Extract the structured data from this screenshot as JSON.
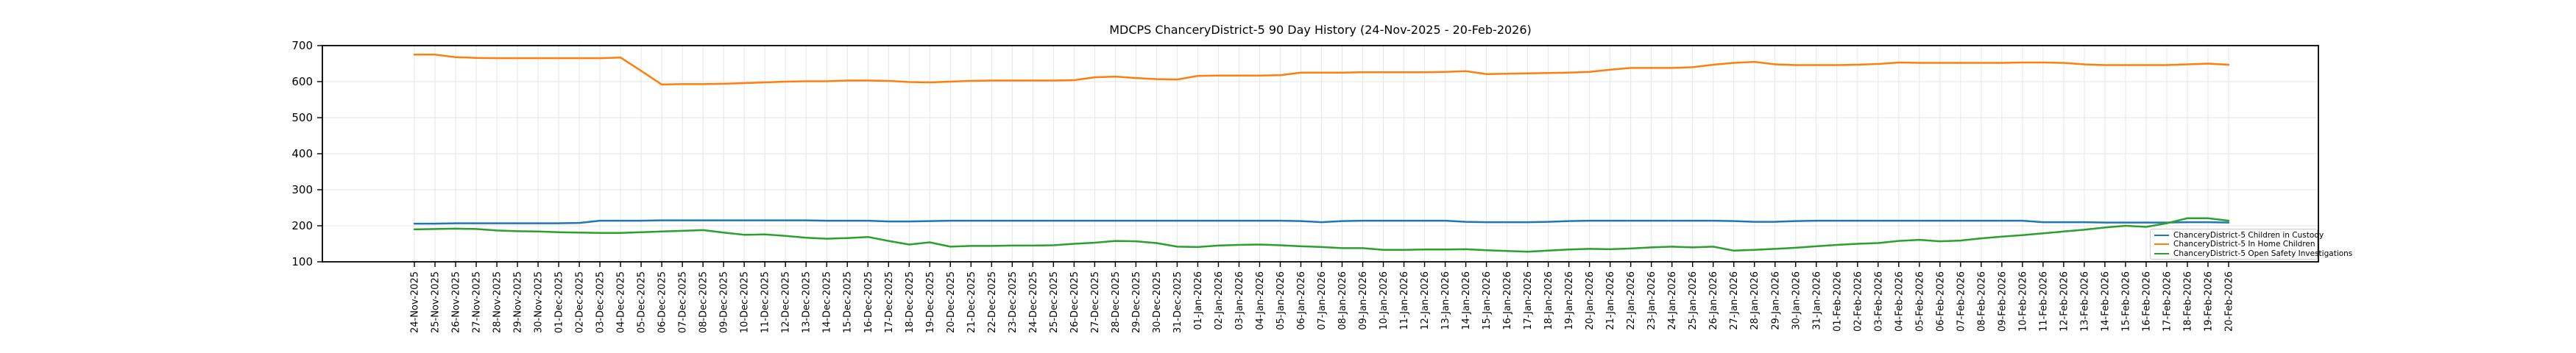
{
  "figure": {
    "background": "#ffffff",
    "plot_border_color": "#000000",
    "gridline_color": "#e6e6e6"
  },
  "chart_data": {
    "type": "line",
    "title": "MDCPS ChanceryDistrict-5 90 Day History (24-Nov-2025 - 20-Feb-2026)",
    "xlabel": "",
    "ylabel": "",
    "ylim": [
      100,
      700
    ],
    "yticks": [
      100,
      200,
      300,
      400,
      500,
      600,
      700
    ],
    "grid": true,
    "legend_position": "lower right",
    "x_tick_labels": [
      "24-Nov-2025",
      "25-Nov-2025",
      "26-Nov-2025",
      "27-Nov-2025",
      "28-Nov-2025",
      "29-Nov-2025",
      "30-Nov-2025",
      "01-Dec-2025",
      "02-Dec-2025",
      "03-Dec-2025",
      "04-Dec-2025",
      "05-Dec-2025",
      "06-Dec-2025",
      "07-Dec-2025",
      "08-Dec-2025",
      "09-Dec-2025",
      "10-Dec-2025",
      "11-Dec-2025",
      "12-Dec-2025",
      "13-Dec-2025",
      "14-Dec-2025",
      "15-Dec-2025",
      "16-Dec-2025",
      "17-Dec-2025",
      "18-Dec-2025",
      "19-Dec-2025",
      "20-Dec-2025",
      "21-Dec-2025",
      "22-Dec-2025",
      "23-Dec-2025",
      "24-Dec-2025",
      "25-Dec-2025",
      "26-Dec-2025",
      "27-Dec-2025",
      "28-Dec-2025",
      "29-Dec-2025",
      "30-Dec-2025",
      "31-Dec-2025",
      "01-Jan-2026",
      "02-Jan-2026",
      "03-Jan-2026",
      "04-Jan-2026",
      "05-Jan-2026",
      "06-Jan-2026",
      "07-Jan-2026",
      "08-Jan-2026",
      "09-Jan-2026",
      "10-Jan-2026",
      "11-Jan-2026",
      "12-Jan-2026",
      "13-Jan-2026",
      "14-Jan-2026",
      "15-Jan-2026",
      "16-Jan-2026",
      "17-Jan-2026",
      "18-Jan-2026",
      "19-Jan-2026",
      "20-Jan-2026",
      "21-Jan-2026",
      "22-Jan-2026",
      "23-Jan-2026",
      "24-Jan-2026",
      "25-Jan-2026",
      "26-Jan-2026",
      "27-Jan-2026",
      "28-Jan-2026",
      "29-Jan-2026",
      "30-Jan-2026",
      "31-Jan-2026",
      "01-Feb-2026",
      "02-Feb-2026",
      "03-Feb-2026",
      "04-Feb-2026",
      "05-Feb-2026",
      "06-Feb-2026",
      "07-Feb-2026",
      "08-Feb-2026",
      "09-Feb-2026",
      "10-Feb-2026",
      "11-Feb-2026",
      "12-Feb-2026",
      "13-Feb-2026",
      "14-Feb-2026",
      "15-Feb-2026",
      "16-Feb-2026",
      "17-Feb-2026",
      "18-Feb-2026",
      "19-Feb-2026",
      "20-Feb-2026"
    ],
    "series": [
      {
        "name": "ChanceryDistrict-5 Children in Custody",
        "color": "#1f77b4",
        "values": [
          206,
          206,
          207,
          207,
          207,
          207,
          207,
          207,
          208,
          214,
          214,
          214,
          215,
          215,
          215,
          215,
          215,
          215,
          215,
          215,
          214,
          214,
          214,
          212,
          212,
          213,
          214,
          214,
          214,
          214,
          214,
          214,
          214,
          214,
          214,
          214,
          214,
          214,
          214,
          214,
          214,
          214,
          214,
          213,
          210,
          213,
          214,
          214,
          214,
          214,
          214,
          211,
          210,
          210,
          210,
          211,
          213,
          214,
          214,
          214,
          214,
          214,
          214,
          214,
          213,
          211,
          211,
          213,
          214,
          214,
          214,
          214,
          214,
          214,
          214,
          214,
          214,
          214,
          214,
          210,
          210,
          210,
          209,
          209,
          209,
          209,
          210,
          210,
          209
        ]
      },
      {
        "name": "ChanceryDistrict-5 In Home Children",
        "color": "#ff7f0e",
        "values": [
          675,
          675,
          668,
          666,
          665,
          665,
          665,
          665,
          665,
          665,
          667,
          630,
          592,
          593,
          593,
          594,
          596,
          598,
          600,
          601,
          601,
          603,
          603,
          602,
          599,
          598,
          600,
          602,
          603,
          603,
          603,
          603,
          604,
          612,
          614,
          610,
          607,
          606,
          616,
          617,
          617,
          617,
          618,
          625,
          625,
          625,
          626,
          626,
          626,
          626,
          627,
          629,
          621,
          622,
          623,
          624,
          625,
          627,
          633,
          638,
          638,
          638,
          640,
          647,
          652,
          655,
          648,
          646,
          646,
          646,
          647,
          649,
          653,
          652,
          652,
          652,
          652,
          652,
          653,
          653,
          652,
          648,
          646,
          646,
          646,
          646,
          648,
          650,
          647
        ]
      },
      {
        "name": "ChanceryDistrict-5 Open Safety Investigations",
        "color": "#2ca02c",
        "values": [
          190,
          191,
          192,
          191,
          187,
          185,
          184,
          182,
          181,
          180,
          180,
          182,
          184,
          186,
          188,
          181,
          175,
          176,
          172,
          167,
          164,
          166,
          169,
          158,
          148,
          154,
          142,
          144,
          144,
          145,
          145,
          146,
          150,
          153,
          158,
          157,
          152,
          142,
          141,
          145,
          147,
          148,
          146,
          143,
          141,
          138,
          138,
          133,
          133,
          134,
          134,
          135,
          132,
          130,
          128,
          131,
          134,
          136,
          135,
          137,
          140,
          142,
          140,
          142,
          131,
          133,
          136,
          139,
          143,
          147,
          150,
          152,
          158,
          161,
          157,
          159,
          165,
          170,
          174,
          179,
          184,
          189,
          195,
          200,
          197,
          207,
          221,
          221,
          214
        ]
      }
    ]
  }
}
